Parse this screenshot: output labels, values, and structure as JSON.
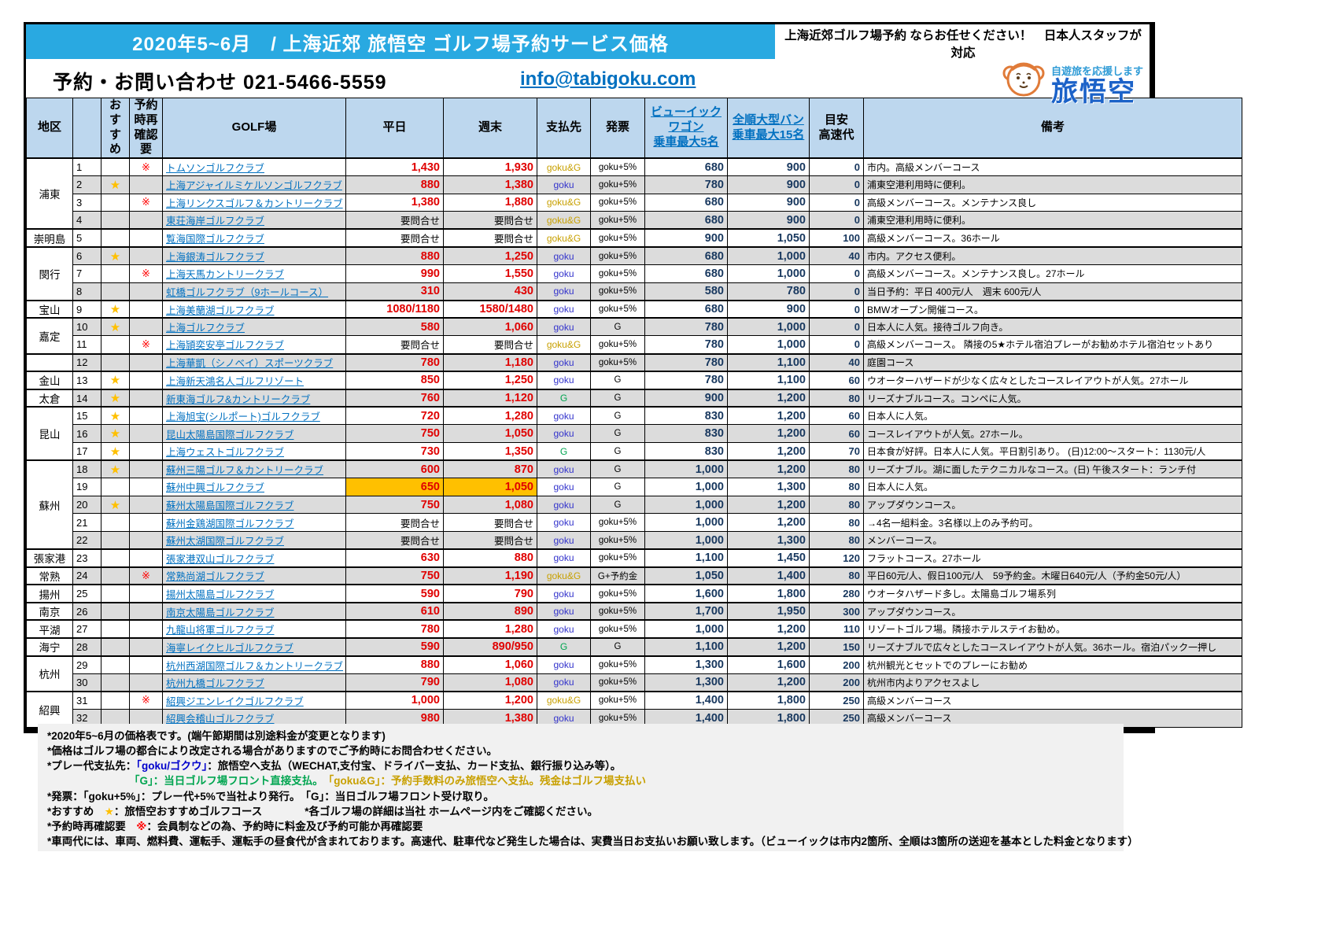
{
  "header": {
    "title": "2020年5~6月　/ 上海近郊 旅悟空 ゴルフ場予約サービス価格",
    "slogan": "上海近郊ゴルフ場予約 ならお任せください！　日本人スタッフが対応",
    "contact": "予約・お問い合わせ  021-5466-5559",
    "email": "info@tabigoku.com",
    "logo_tagline": "自遊旅を応援します",
    "logo_brand": "旅悟空"
  },
  "colors": {
    "banner_blue": "#29A9E1",
    "link_blue": "#0070C0",
    "price_red": "#E00000",
    "bus_navy": "#17375E",
    "goku_blue": "#3333CC",
    "goku_and_g_gold": "#C8A000",
    "g_green": "#00A550",
    "highlight_orange": "#FFC000",
    "header_bg": "#BDD7EE"
  },
  "table": {
    "columns": [
      {
        "key": "region",
        "label": "地区"
      },
      {
        "key": "no",
        "label": ""
      },
      {
        "key": "star",
        "label": "おすすめ"
      },
      {
        "key": "recheck",
        "label": "予約時再\n確認要"
      },
      {
        "key": "course",
        "label": "GOLF場"
      },
      {
        "key": "weekday",
        "label": "平日"
      },
      {
        "key": "weekend",
        "label": "週末"
      },
      {
        "key": "payto",
        "label": "支払先"
      },
      {
        "key": "invoice",
        "label": "発票"
      },
      {
        "key": "buick",
        "label": "ビューイックワゴン\n乗車最大5名"
      },
      {
        "key": "van",
        "label": "全順大型バン\n乗車最大15名"
      },
      {
        "key": "highway",
        "label": "目安\n高速代"
      },
      {
        "key": "remark",
        "label": "備考"
      }
    ],
    "rows": [
      {
        "no": 1,
        "region": "浦東",
        "region_span": 4,
        "star": false,
        "recheck": true,
        "course": "トムソンゴルフクラブ",
        "weekday": "1,430",
        "weekend": "1,930",
        "payto": "goku&G",
        "invoice": "goku+5%",
        "buick": "680",
        "van": "900",
        "highway": "0",
        "remark": "市内。高級メンバーコース"
      },
      {
        "no": 2,
        "star": true,
        "recheck": false,
        "course": "上海アジャイルミケルソンゴルフクラブ",
        "weekday": "880",
        "weekend": "1,380",
        "payto": "goku",
        "invoice": "goku+5%",
        "buick": "780",
        "van": "900",
        "highway": "0",
        "remark": "浦東空港利用時に便利。"
      },
      {
        "no": 3,
        "star": false,
        "recheck": true,
        "course": "上海リンクスゴルフ＆カントリークラブ",
        "weekday": "1,380",
        "weekend": "1,880",
        "payto": "goku&G",
        "invoice": "goku+5%",
        "buick": "680",
        "van": "900",
        "highway": "0",
        "remark": "高級メンバーコース。メンテナンス良し"
      },
      {
        "no": 4,
        "star": false,
        "recheck": false,
        "course": "東荘海岸ゴルフクラブ",
        "weekday": "要問合せ",
        "weekend": "要問合せ",
        "payto": "goku&G",
        "invoice": "goku+5%",
        "buick": "680",
        "van": "900",
        "highway": "0",
        "remark": "浦東空港利用時に便利。"
      },
      {
        "no": 5,
        "region": "崇明島",
        "region_span": 1,
        "star": false,
        "recheck": false,
        "course": "覧海国際ゴルフクラブ",
        "weekday": "要問合せ",
        "weekend": "要問合せ",
        "payto": "goku&G",
        "invoice": "goku+5%",
        "buick": "900",
        "van": "1,050",
        "highway": "100",
        "remark": "高級メンバーコース。36ホール"
      },
      {
        "no": 6,
        "region": "閔行",
        "region_span": 3,
        "star": true,
        "recheck": false,
        "course": "上海銀涛ゴルフクラブ",
        "weekday": "880",
        "weekend": "1,250",
        "payto": "goku",
        "invoice": "goku+5%",
        "buick": "680",
        "van": "1,000",
        "highway": "40",
        "remark": "市内。アクセス便利。"
      },
      {
        "no": 7,
        "star": false,
        "recheck": true,
        "course": "上海天馬カントリークラブ",
        "weekday": "990",
        "weekend": "1,550",
        "payto": "goku",
        "invoice": "goku+5%",
        "buick": "680",
        "van": "1,000",
        "highway": "0",
        "remark": "高級メンバーコース。メンテナンス良し。27ホール"
      },
      {
        "no": 8,
        "star": false,
        "recheck": false,
        "course": "虹橋ゴルフクラブ（9ホールコース）",
        "weekday": "310",
        "weekend": "430",
        "payto": "goku",
        "invoice": "goku+5%",
        "buick": "580",
        "van": "780",
        "highway": "0",
        "remark": "当日予約：平日 400元/人　週末 600元/人"
      },
      {
        "no": 9,
        "region": "宝山",
        "region_span": 1,
        "star": true,
        "recheck": false,
        "course": "上海美蘭湖ゴルフクラブ",
        "weekday": "1080/1180",
        "weekend": "1580/1480",
        "payto": "goku",
        "invoice": "goku+5%",
        "buick": "680",
        "van": "900",
        "highway": "0",
        "remark": "BMWオープン開催コース。"
      },
      {
        "no": 10,
        "region": "嘉定",
        "region_span": 2,
        "star": true,
        "recheck": false,
        "course": "上海ゴルフクラブ",
        "weekday": "580",
        "weekend": "1,060",
        "payto": "goku",
        "invoice": "G",
        "buick": "780",
        "van": "1,000",
        "highway": "0",
        "remark": "日本人に人気。接待ゴルフ向き。"
      },
      {
        "no": 11,
        "star": false,
        "recheck": true,
        "course": "上海頴奕安亭ゴルフクラブ",
        "weekday": "要問合せ",
        "weekend": "要問合せ",
        "payto": "goku&G",
        "invoice": "goku+5%",
        "buick": "780",
        "van": "1,000",
        "highway": "0",
        "remark": "高級メンバーコース。 隣接の5★ホテル宿泊プレーがお勧めホテル宿泊セットあり"
      },
      {
        "no": 12,
        "region": "",
        "region_span": 1,
        "star": false,
        "recheck": false,
        "course": "上海華凱（シノベイ）スポーツクラブ",
        "weekday": "780",
        "weekend": "1,180",
        "payto": "goku",
        "invoice": "goku+5%",
        "buick": "780",
        "van": "1,100",
        "highway": "40",
        "remark": "庭園コース"
      },
      {
        "no": 13,
        "region": "金山",
        "region_span": 1,
        "star": true,
        "recheck": false,
        "course": "上海新天鴻名人ゴルフリゾート",
        "weekday": "850",
        "weekend": "1,250",
        "payto": "goku",
        "invoice": "G",
        "buick": "780",
        "van": "1,100",
        "highway": "60",
        "remark": "ウオーターハザードが少なく広々としたコースレイアウトが人気。27ホール"
      },
      {
        "no": 14,
        "region": "太倉",
        "region_span": 1,
        "star": true,
        "recheck": false,
        "course": "新東海ゴルフ&カントリークラブ",
        "weekday": "760",
        "weekend": "1,120",
        "payto": "G",
        "invoice": "G",
        "buick": "900",
        "van": "1,200",
        "highway": "80",
        "remark": "リーズナブルコース。コンペに人気。"
      },
      {
        "no": 15,
        "region": "昆山",
        "region_span": 3,
        "star": true,
        "recheck": false,
        "course": "上海旭宝(シルポート)ゴルフクラブ",
        "weekday": "720",
        "weekend": "1,280",
        "payto": "goku",
        "invoice": "G",
        "buick": "830",
        "van": "1,200",
        "highway": "60",
        "remark": "日本人に人気。"
      },
      {
        "no": 16,
        "star": true,
        "recheck": false,
        "course": "昆山太陽島国際ゴルフクラブ",
        "weekday": "750",
        "weekend": "1,050",
        "payto": "goku",
        "invoice": "G",
        "buick": "830",
        "van": "1,200",
        "highway": "60",
        "remark": "コースレイアウトが人気。27ホール。"
      },
      {
        "no": 17,
        "star": true,
        "recheck": false,
        "course": "上海ウェストゴルフクラブ",
        "weekday": "730",
        "weekend": "1,350",
        "payto": "G",
        "invoice": "G",
        "buick": "830",
        "van": "1,200",
        "highway": "70",
        "remark": "日本食が好評。日本人に人気。平日割引あり。 (日)12:00～スタート：1130元/人"
      },
      {
        "no": 18,
        "region": "蘇州",
        "region_span": 5,
        "star": true,
        "recheck": false,
        "course": "蘇州三陽ゴルフ＆カントリークラブ",
        "weekday": "600",
        "weekend": "870",
        "payto": "goku",
        "invoice": "G",
        "buick": "1,000",
        "van": "1,200",
        "highway": "80",
        "remark": "リーズナブル。湖に面したテクニカルなコース。(日) 午後スタート：ランチ付"
      },
      {
        "no": 19,
        "star": false,
        "recheck": false,
        "highlight": true,
        "course": "蘇州中興ゴルフクラブ",
        "weekday": "650",
        "weekend": "1,050",
        "payto": "goku",
        "invoice": "G",
        "buick": "1,000",
        "van": "1,300",
        "highway": "80",
        "remark": "日本人に人気。"
      },
      {
        "no": 20,
        "star": true,
        "recheck": false,
        "course": "蘇州太陽島国際ゴルフクラブ",
        "weekday": "750",
        "weekend": "1,080",
        "payto": "goku",
        "invoice": "G",
        "buick": "1,000",
        "van": "1,200",
        "highway": "80",
        "remark": "アップダウンコース。"
      },
      {
        "no": 21,
        "star": false,
        "recheck": false,
        "course": "蘇州金鶏湖国際ゴルフクラブ",
        "weekday": "要問合せ",
        "weekend": "要問合せ",
        "payto": "goku",
        "invoice": "goku+5%",
        "buick": "1,000",
        "van": "1,200",
        "highway": "80",
        "remark": "→4名一組料金。3名様以上のみ予約可。"
      },
      {
        "no": 22,
        "star": false,
        "recheck": false,
        "course": "蘇州太湖国際ゴルフクラブ",
        "weekday": "要問合せ",
        "weekend": "要問合せ",
        "payto": "goku",
        "invoice": "goku+5%",
        "buick": "1,000",
        "van": "1,300",
        "highway": "80",
        "remark": "メンバーコース。"
      },
      {
        "no": 23,
        "region": "張家港",
        "region_span": 1,
        "star": false,
        "recheck": false,
        "course": "張家港双山ゴルフクラブ",
        "weekday": "630",
        "weekend": "880",
        "payto": "goku",
        "invoice": "goku+5%",
        "buick": "1,100",
        "van": "1,450",
        "highway": "120",
        "remark": "フラットコース。27ホール"
      },
      {
        "no": 24,
        "region": "常熟",
        "region_span": 1,
        "star": false,
        "recheck": true,
        "course": "常熟尚湖ゴルフクラブ",
        "weekday": "750",
        "weekend": "1,190",
        "payto": "goku&G",
        "invoice": "G+予約金",
        "buick": "1,050",
        "van": "1,400",
        "highway": "80",
        "remark": "平日60元/人、假日100元/人　59予約金。木曜日640元/人（予約金50元/人）"
      },
      {
        "no": 25,
        "region": "揚州",
        "region_span": 1,
        "star": false,
        "recheck": false,
        "course": "揚州太陽島ゴルフクラブ",
        "weekday": "590",
        "weekend": "790",
        "payto": "goku",
        "invoice": "goku+5%",
        "buick": "1,600",
        "van": "1,800",
        "highway": "280",
        "remark": "ウオータハザード多し。太陽島ゴルフ場系列"
      },
      {
        "no": 26,
        "region": "南京",
        "region_span": 1,
        "star": false,
        "recheck": false,
        "course": "南京太陽島ゴルフクラブ",
        "weekday": "610",
        "weekend": "890",
        "payto": "goku",
        "invoice": "goku+5%",
        "buick": "1,700",
        "van": "1,950",
        "highway": "300",
        "remark": "アップダウンコース。"
      },
      {
        "no": 27,
        "region": "平湖",
        "region_span": 1,
        "star": false,
        "recheck": false,
        "course": "九龍山将軍ゴルフクラブ",
        "weekday": "780",
        "weekend": "1,280",
        "payto": "goku",
        "invoice": "goku+5%",
        "buick": "1,000",
        "van": "1,200",
        "highway": "110",
        "remark": "リゾートゴルフ場。隣接ホテルステイお勧め。"
      },
      {
        "no": 28,
        "region": "海宁",
        "region_span": 1,
        "star": false,
        "recheck": false,
        "course": "海寧レイクヒルゴルフクラブ",
        "weekday": "590",
        "weekend": "890/950",
        "payto": "G",
        "invoice": "G",
        "buick": "1,100",
        "van": "1,200",
        "highway": "150",
        "remark": "リーズナブルで広々としたコースレイアウトが人気。36ホール。宿泊パック一押し"
      },
      {
        "no": 29,
        "region": "杭州",
        "region_span": 2,
        "star": false,
        "recheck": false,
        "course": "杭州西湖国際ゴルフ＆カントリークラブ",
        "weekday": "880",
        "weekend": "1,060",
        "payto": "goku",
        "invoice": "goku+5%",
        "buick": "1,300",
        "van": "1,600",
        "highway": "200",
        "remark": "杭州観光とセットでのプレーにお勧め"
      },
      {
        "no": 30,
        "star": false,
        "recheck": false,
        "course": "杭州九橋ゴルフクラブ",
        "weekday": "790",
        "weekend": "1,080",
        "payto": "goku",
        "invoice": "goku+5%",
        "buick": "1,300",
        "van": "1,200",
        "highway": "200",
        "remark": "杭州市内よりアクセスよし"
      },
      {
        "no": 31,
        "region": "紹興",
        "region_span": 2,
        "star": false,
        "recheck": true,
        "course": "紹興ジエンレイクゴルフクラブ",
        "weekday": "1,000",
        "weekend": "1,200",
        "payto": "goku&G",
        "invoice": "goku+5%",
        "buick": "1,400",
        "van": "1,800",
        "highway": "250",
        "remark": "高級メンバーコース"
      },
      {
        "no": 32,
        "star": false,
        "recheck": false,
        "course": "紹興会稽山ゴルフクラブ",
        "weekday": "980",
        "weekend": "1,380",
        "payto": "goku",
        "invoice": "goku+5%",
        "buick": "1,400",
        "van": "1,800",
        "highway": "250",
        "remark": "高級メンバーコース"
      }
    ]
  },
  "notes": [
    {
      "segments": [
        {
          "t": "*2020年5~6月の価格表です。(端午節期間は別途料金が変更となります)"
        }
      ]
    },
    {
      "segments": [
        {
          "t": "*価格はゴルフ場の都合により改定される場合がありますのでご予約時にお問合わせください。"
        }
      ]
    },
    {
      "segments": [
        {
          "t": "*プレー代支払先：",
          "c": ""
        },
        {
          "t": "「goku/ゴクウ」",
          "c": "blue"
        },
        {
          "t": "：旅悟空へ支払（WECHAT,支付宝、ドライバー支払、カード支払、銀行振り込み等）。"
        }
      ]
    },
    {
      "indent": true,
      "segments": [
        {
          "t": "「G」：当日ゴルフ場フロント直接支払。　",
          "c": "green"
        },
        {
          "t": "「goku&G」：予約手数料のみ旅悟空へ支払。残金はゴルフ場支払い",
          "c": "gold"
        }
      ]
    },
    {
      "segments": [
        {
          "t": "*発票：「goku+5%」：プレー代+5%で当社より発行。　「G」：当日ゴルフ場フロント受け取り。"
        }
      ]
    },
    {
      "segments": [
        {
          "t": "*おすすめ　"
        },
        {
          "t": "★",
          "c": "star"
        },
        {
          "t": "：旅悟空おすすめゴルフコース　　　　*各ゴルフ場の詳細は当社 ホームページ内をご確認ください。"
        }
      ]
    },
    {
      "segments": [
        {
          "t": "*予約時再確認要　"
        },
        {
          "t": "※",
          "c": "red"
        },
        {
          "t": "：会員制などの為、予約時に料金及び予約可能か再確認要"
        }
      ]
    },
    {
      "segments": [
        {
          "t": "*車両代には、車両、燃料費、運転手、運転手の昼食代が含まれております。高速代、駐車代など発生した場合は、実費当日お支払いお願い致します。（ビューイックは市内2箇所、全順は3箇所の送迎を基本とした料金となります）"
        }
      ]
    }
  ]
}
